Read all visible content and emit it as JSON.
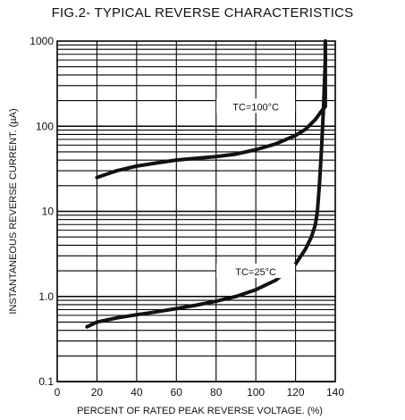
{
  "chart_data": {
    "type": "line",
    "title": "FIG.2- TYPICAL REVERSE CHARACTERISTICS",
    "xlabel": "PERCENT OF RATED PEAK REVERSE VOLTAGE. (%)",
    "ylabel": "INSTANTANEOUS REVERSE CURRENT. (µA)",
    "xlim": [
      0,
      140
    ],
    "ylim": [
      0.1,
      1000
    ],
    "yscale": "log",
    "grid": true,
    "x_ticks": [
      "0",
      "20",
      "40",
      "60",
      "80",
      "100",
      "120",
      "140"
    ],
    "y_ticks": [
      "0.1",
      "1.0",
      "10",
      "100",
      "1000"
    ],
    "series": [
      {
        "name": "TC=100°C",
        "x": [
          20,
          30,
          40,
          50,
          60,
          70,
          80,
          90,
          100,
          110,
          120,
          125,
          130,
          133,
          135,
          135,
          135
        ],
        "y": [
          25,
          30,
          34,
          37,
          40,
          42,
          44,
          47,
          53,
          62,
          78,
          92,
          120,
          150,
          170,
          300,
          1000
        ]
      },
      {
        "name": "TC=25°C",
        "x": [
          15,
          20,
          30,
          40,
          50,
          60,
          70,
          80,
          90,
          100,
          110,
          120,
          125,
          128,
          130,
          131,
          132,
          133,
          134,
          134.5,
          135,
          135
        ],
        "y": [
          0.44,
          0.5,
          0.56,
          0.61,
          0.66,
          0.72,
          0.79,
          0.88,
          1.0,
          1.2,
          1.55,
          2.4,
          3.6,
          5.0,
          7.0,
          10,
          20,
          50,
          150,
          300,
          600,
          1000
        ]
      }
    ]
  }
}
